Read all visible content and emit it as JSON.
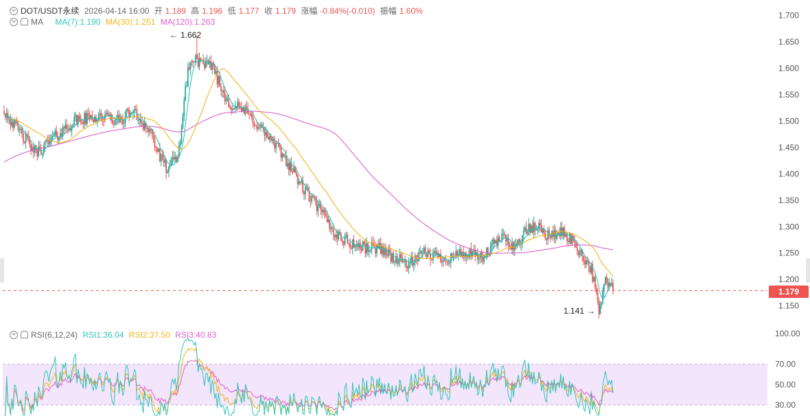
{
  "header": {
    "symbol": "DOT/USDT永续",
    "datetime": "2026-04-14 16:00",
    "open_label": "开",
    "open": "1.189",
    "high_label": "高",
    "high": "1.196",
    "low_label": "低",
    "low": "1.177",
    "close_label": "收",
    "close": "1.179",
    "change_label": "涨幅",
    "change": "-0.84%(-0.010)",
    "amplitude_label": "振幅",
    "amplitude": "1.60%"
  },
  "ma_legend": {
    "label": "MA",
    "ma7": "MA(7):1.190",
    "ma30": "MA(30):1.251",
    "ma120": "MA(120):1.263"
  },
  "rsi_legend": {
    "label": "RSI(6,12,24)",
    "rsi1": "RSI1:36.04",
    "rsi2": "RSI2:37.50",
    "rsi3": "RSI3:40.83"
  },
  "annotations": {
    "high_marker": "1.662",
    "low_marker": "1.141"
  },
  "current_price": "1.179",
  "colors": {
    "up": "#26a69a",
    "down": "#ef5350",
    "ma7": "#2ec4b6",
    "ma30": "#f2b41c",
    "ma120": "#de5fc8",
    "rsi1": "#2ec4b6",
    "rsi2": "#f2b41c",
    "rsi3": "#de5fc8",
    "rsi_band": "#f3e5fb"
  },
  "chart_data": [
    {
      "type": "candlestick",
      "price_axis_ticks": [
        "1.700",
        "1.650",
        "1.600",
        "1.550",
        "1.500",
        "1.450",
        "1.400",
        "1.350",
        "1.300",
        "1.250",
        "1.200",
        "1.150"
      ],
      "ylim": [
        1.13,
        1.71
      ],
      "anchors": [
        [
          0,
          1.52
        ],
        [
          12,
          1.48
        ],
        [
          25,
          1.44
        ],
        [
          40,
          1.47
        ],
        [
          55,
          1.5
        ],
        [
          75,
          1.51
        ],
        [
          90,
          1.5
        ],
        [
          100,
          1.52
        ],
        [
          115,
          1.48
        ],
        [
          122,
          1.43
        ],
        [
          128,
          1.41
        ],
        [
          136,
          1.43
        ],
        [
          140,
          1.51
        ],
        [
          144,
          1.6
        ],
        [
          150,
          1.62
        ],
        [
          157,
          1.6
        ],
        [
          163,
          1.61
        ],
        [
          170,
          1.56
        ],
        [
          178,
          1.53
        ],
        [
          188,
          1.52
        ],
        [
          200,
          1.49
        ],
        [
          210,
          1.46
        ],
        [
          220,
          1.43
        ],
        [
          235,
          1.37
        ],
        [
          248,
          1.33
        ],
        [
          258,
          1.29
        ],
        [
          270,
          1.27
        ],
        [
          282,
          1.26
        ],
        [
          295,
          1.26
        ],
        [
          305,
          1.24
        ],
        [
          318,
          1.23
        ],
        [
          330,
          1.25
        ],
        [
          345,
          1.24
        ],
        [
          360,
          1.25
        ],
        [
          375,
          1.24
        ],
        [
          385,
          1.27
        ],
        [
          392,
          1.28
        ],
        [
          400,
          1.26
        ],
        [
          408,
          1.29
        ],
        [
          418,
          1.3
        ],
        [
          428,
          1.28
        ],
        [
          435,
          1.29
        ],
        [
          443,
          1.28
        ],
        [
          452,
          1.25
        ],
        [
          460,
          1.22
        ],
        [
          466,
          1.14
        ],
        [
          471,
          1.2
        ],
        [
          477,
          1.18
        ]
      ],
      "high_point": 1.662,
      "low_point": 1.141,
      "last_close": 1.179,
      "ma7_last": 1.19,
      "ma30_last": 1.251,
      "ma120_last": 1.263
    },
    {
      "type": "line",
      "name": "RSI",
      "axis_ticks": [
        "100.00",
        "70.00",
        "50.00",
        "30.00"
      ],
      "ylim": [
        20,
        100
      ],
      "band": [
        30,
        70
      ],
      "series": [
        {
          "name": "RSI1",
          "last": 36.04
        },
        {
          "name": "RSI2",
          "last": 37.5
        },
        {
          "name": "RSI3",
          "last": 40.83
        }
      ]
    }
  ]
}
